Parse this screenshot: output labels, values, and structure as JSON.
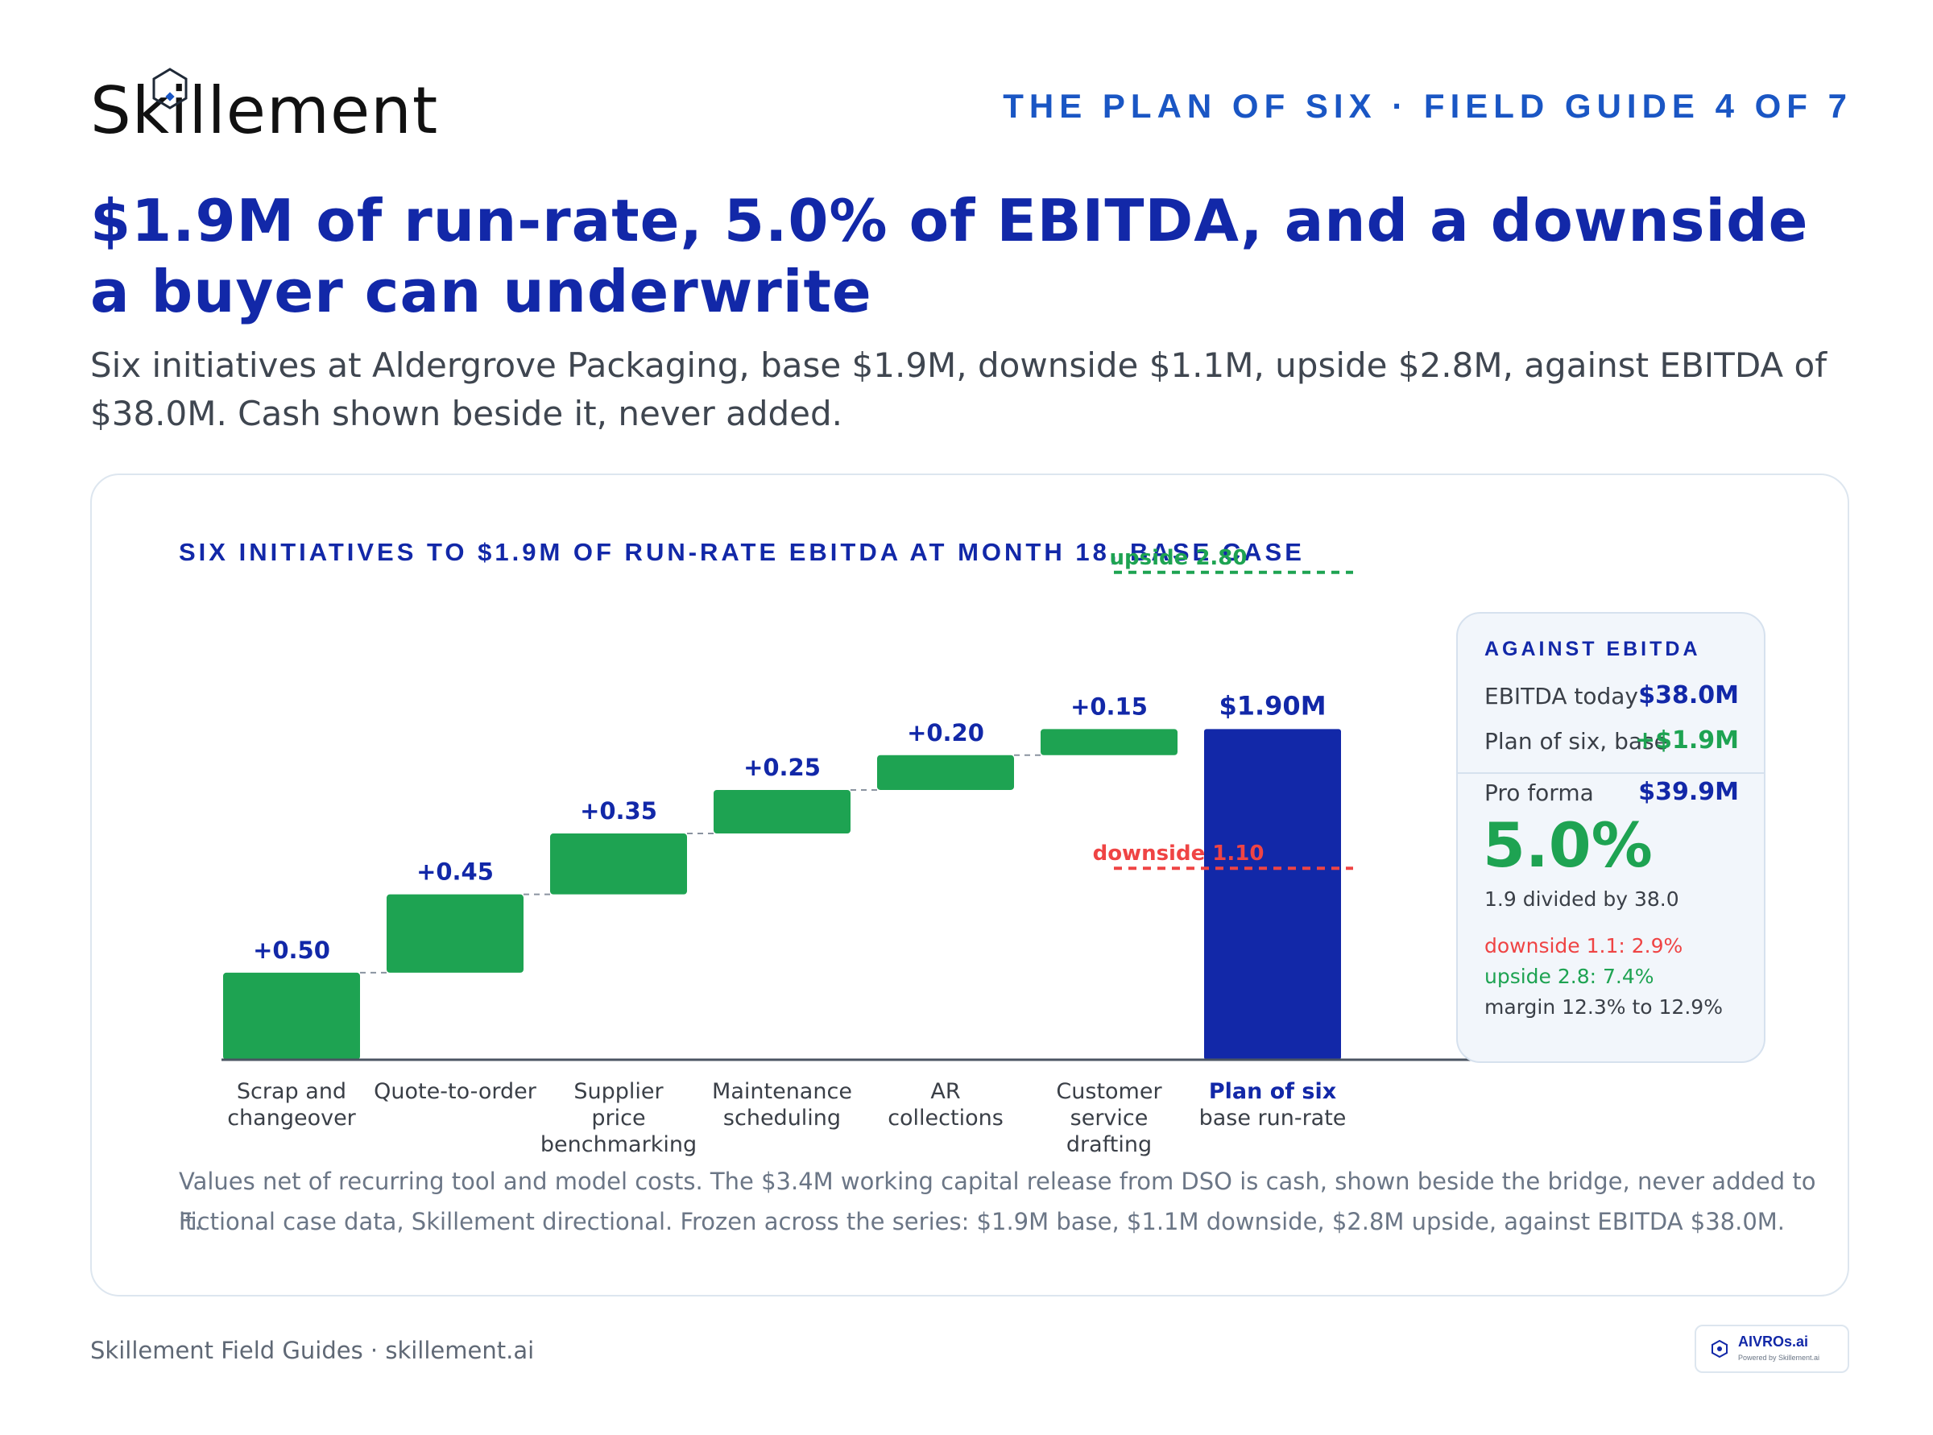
{
  "brand": {
    "logo_text": "Skillement"
  },
  "header": {
    "series_label": "THE PLAN OF SIX · FIELD GUIDE 4 OF 7"
  },
  "headline": "$1.9M of run-rate, 5.0% of EBITDA, and a downside a buyer can underwrite",
  "subhead": "Six initiatives at Aldergrove Packaging, base $1.9M, downside $1.1M, upside $2.8M, against EBITDA of $38.0M. Cash shown beside it, never added.",
  "chart_data": {
    "type": "bar",
    "subtype": "waterfall",
    "title": "SIX INITIATIVES TO $1.9M OF RUN-RATE EBITDA AT MONTH 18, BASE CASE",
    "categories": [
      [
        "Scrap and",
        "changeover"
      ],
      [
        "Quote-to-order"
      ],
      [
        "Supplier",
        "price",
        "benchmarking"
      ],
      [
        "Maintenance",
        "scheduling"
      ],
      [
        "AR",
        "collections"
      ],
      [
        "Customer",
        "service",
        "drafting"
      ]
    ],
    "values": [
      0.5,
      0.45,
      0.35,
      0.25,
      0.2,
      0.15
    ],
    "value_labels": [
      "+0.50",
      "+0.45",
      "+0.35",
      "+0.25",
      "+0.20",
      "+0.15"
    ],
    "total": {
      "label_bold": "Plan of six",
      "label_sub": "base run-rate",
      "value": 1.9,
      "value_label": "$1.90M"
    },
    "reference_lines": [
      {
        "label": "upside 2.80",
        "value": 2.8,
        "color": "#1ea352"
      },
      {
        "label": "downside 1.10",
        "value": 1.1,
        "color": "#ef4444"
      }
    ],
    "ylim": [
      0,
      2.85
    ],
    "grid": false,
    "colors": {
      "increase": "#1ea352",
      "total": "#1228a8",
      "connector": "#8a93a0",
      "axis": "#4b5563"
    }
  },
  "panel": {
    "title": "AGAINST EBITDA",
    "rows": [
      {
        "label": "EBITDA today",
        "value": "$38.0M"
      },
      {
        "label": "Plan of six, base",
        "value": "+$1.9M"
      }
    ],
    "proforma": {
      "label": "Pro forma",
      "value": "$39.9M"
    },
    "pct": "5.0%",
    "pct_note": "1.9 divided by 38.0",
    "downside_note": "downside 1.1: 2.9%",
    "upside_note": "upside 2.8: 7.4%",
    "margin_note": "margin 12.3% to 12.9%"
  },
  "footnotes": [
    "Values net of recurring tool and model costs. The $3.4M working capital release from DSO is cash, shown beside the bridge, never added to it.",
    "Fictional case data, Skillement directional. Frozen across the series: $1.9M base, $1.1M downside, $2.8M upside, against EBITDA $38.0M."
  ],
  "footer": {
    "left_text": "Skillement Field Guides · skillement.ai"
  },
  "badge": {
    "name": "AIVROs.ai",
    "tagline": "Powered by Skillement.ai"
  }
}
